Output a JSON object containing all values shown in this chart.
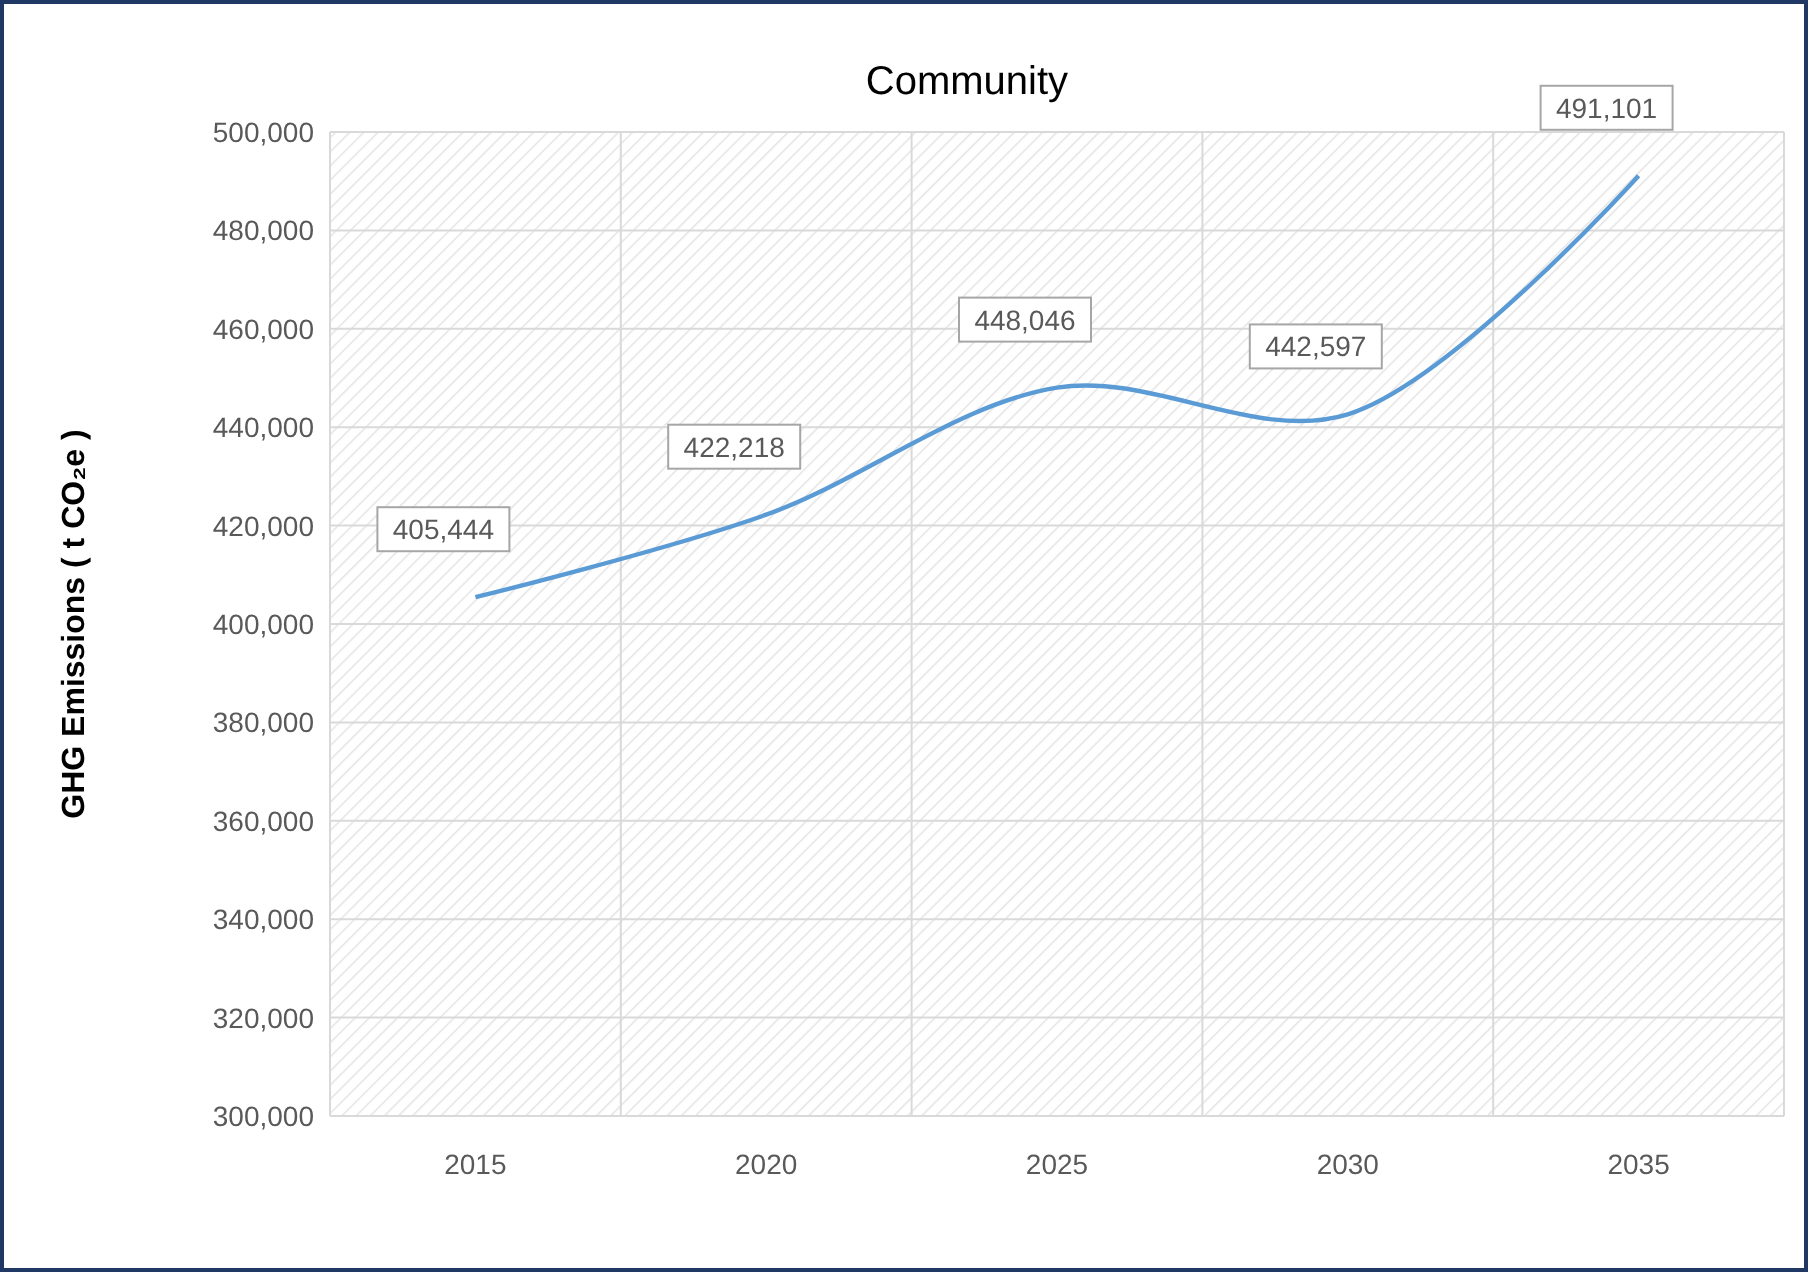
{
  "chart_data": {
    "type": "line",
    "title": "Community",
    "ylabel": "GHG Emissions ( t CO₂e )",
    "categories": [
      "2015",
      "2020",
      "2025",
      "2030",
      "2035"
    ],
    "series": [
      {
        "color": "#5b9bd5",
        "values": [
          405444,
          422218,
          448046,
          442597,
          491101
        ],
        "value_labels": [
          "405,444",
          "422,218",
          "448,046",
          "442,597",
          "491,101"
        ]
      }
    ],
    "ylim": [
      300000,
      500000
    ],
    "yticks": [
      {
        "value": 300000,
        "label": "300,000"
      },
      {
        "value": 320000,
        "label": "320,000"
      },
      {
        "value": 340000,
        "label": "340,000"
      },
      {
        "value": 360000,
        "label": "360,000"
      },
      {
        "value": 380000,
        "label": "380,000"
      },
      {
        "value": 400000,
        "label": "400,000"
      },
      {
        "value": 420000,
        "label": "420,000"
      },
      {
        "value": 440000,
        "label": "440,000"
      },
      {
        "value": 460000,
        "label": "460,000"
      },
      {
        "value": 480000,
        "label": "480,000"
      },
      {
        "value": 500000,
        "label": "500,000"
      }
    ],
    "grid": true,
    "marker": "none",
    "line_style": "solid"
  }
}
